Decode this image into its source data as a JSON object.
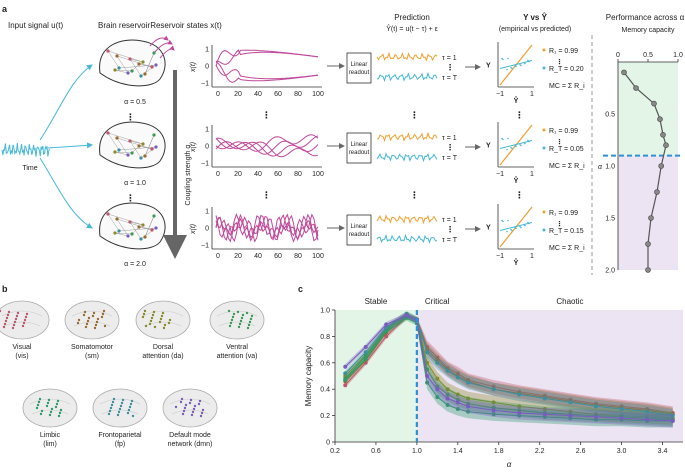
{
  "colors": {
    "magenta": "#c0479a",
    "orange": "#f0a030",
    "cyan": "#45b8d6",
    "blue_dash": "#2f8fd8",
    "stable_bg": "#e3f5e7",
    "chaotic_bg": "#ece4f3",
    "gray_line": "#555555"
  },
  "panel_a": {
    "label": "a",
    "input_title": "Input signal u(t)",
    "time_label": "Time",
    "brain_title": "Brain reservoir",
    "alphas": [
      "α = 0.5",
      "α = 1.0",
      "α = 2.0"
    ],
    "coupling_label": "Coupling strength α",
    "states_title": "Reservoir states x(t)",
    "state_ylabel": "x(t)",
    "state_yticks": [
      "1",
      "0",
      "−1"
    ],
    "state_xticks": [
      "0",
      "20",
      "40",
      "60",
      "80",
      "100"
    ],
    "readout_label": "Linear readout",
    "prediction_title": "Prediction",
    "prediction_formula": "Ŷ(t) = u(t − τ) + ε",
    "tau1": "τ = 1",
    "tauT": "τ = T",
    "vs_title": "Y vs Ŷ",
    "vs_subtitle": "(empirical vs predicted)",
    "scatter_ylabel": "Y",
    "scatter_xlabel": "Ŷ",
    "scatter_xticks": [
      "−1",
      "1"
    ],
    "rows": [
      {
        "r1": "R₁ = 0.99",
        "rT": "R_T = 0.20"
      },
      {
        "r1": "R₁ = 0.99",
        "rT": "R_T = 0.05"
      },
      {
        "r1": "R₁ = 0.99",
        "rT": "R_T = 0.15"
      }
    ],
    "mc_formula": "MC = Σ R_i",
    "perf_title": "Performance across α",
    "perf_xlabel": "Memory capacity",
    "perf_xticks": [
      "0",
      "0.5",
      "1.0"
    ],
    "perf_yticks": [
      "0.5",
      "1.0",
      "1.5",
      "2.0"
    ],
    "perf_ylabel": "α",
    "perf_alpha": [
      0.1,
      0.25,
      0.4,
      0.55,
      0.7,
      0.8,
      1.0,
      1.25,
      1.5,
      1.75,
      2.0
    ],
    "perf_mc": [
      0.1,
      0.3,
      0.6,
      0.7,
      0.75,
      0.8,
      0.72,
      0.65,
      0.55,
      0.5,
      0.5
    ]
  },
  "panel_b": {
    "label": "b",
    "networks": [
      {
        "name": "Visual",
        "abbr": "(vis)",
        "color": "#c0566e"
      },
      {
        "name": "Somatomotor",
        "abbr": "(sm)",
        "color": "#9b6a2e"
      },
      {
        "name": "Dorsal",
        "abbr": "attention (da)",
        "color": "#8b8a2a"
      },
      {
        "name": "Ventral",
        "abbr": "attention (va)",
        "color": "#3b9a56"
      },
      {
        "name": "Limbic",
        "abbr": "(lim)",
        "color": "#2f9a6e"
      },
      {
        "name": "Frontoparietal",
        "abbr": "(fp)",
        "color": "#3d8ea0"
      },
      {
        "name": "Default mode",
        "abbr": "network (dmn)",
        "color": "#7a5cc0"
      }
    ]
  },
  "panel_c": {
    "label": "c",
    "region_stable": "Stable",
    "region_critical": "Critical",
    "region_chaotic": "Chaotic"
  },
  "chart_data": {
    "type": "line",
    "xlabel": "α",
    "ylabel": "Memory capacity",
    "xlim": [
      0.2,
      3.6
    ],
    "ylim": [
      0,
      1.0
    ],
    "xticks": [
      "0.2",
      "0.6",
      "1.0",
      "1.4",
      "1.8",
      "2.2",
      "2.6",
      "3.0",
      "3.4"
    ],
    "yticks": [
      "0",
      "0.2",
      "0.4",
      "0.6",
      "0.8",
      "1.0"
    ],
    "critical_x": 1.0,
    "x": [
      0.3,
      0.5,
      0.7,
      0.9,
      1.0,
      1.1,
      1.2,
      1.3,
      1.4,
      1.5,
      1.75,
      2.0,
      2.25,
      2.5,
      2.75,
      3.0,
      3.25,
      3.5
    ],
    "series": [
      {
        "color": "#c0566e",
        "values": [
          0.43,
          0.6,
          0.8,
          0.95,
          0.93,
          0.72,
          0.64,
          0.56,
          0.52,
          0.47,
          0.42,
          0.38,
          0.35,
          0.32,
          0.29,
          0.27,
          0.25,
          0.22
        ]
      },
      {
        "color": "#9b6a2e",
        "values": [
          0.46,
          0.62,
          0.83,
          0.95,
          0.92,
          0.7,
          0.62,
          0.55,
          0.5,
          0.46,
          0.4,
          0.37,
          0.34,
          0.31,
          0.28,
          0.26,
          0.24,
          0.21
        ]
      },
      {
        "color": "#8b8a2a",
        "values": [
          0.5,
          0.66,
          0.86,
          0.97,
          0.93,
          0.6,
          0.48,
          0.4,
          0.36,
          0.33,
          0.3,
          0.27,
          0.25,
          0.23,
          0.21,
          0.2,
          0.19,
          0.18
        ]
      },
      {
        "color": "#3b9a56",
        "values": [
          0.48,
          0.65,
          0.85,
          0.96,
          0.92,
          0.55,
          0.42,
          0.36,
          0.32,
          0.29,
          0.26,
          0.24,
          0.22,
          0.21,
          0.2,
          0.19,
          0.18,
          0.17
        ]
      },
      {
        "color": "#2f9a6e",
        "values": [
          0.47,
          0.63,
          0.84,
          0.94,
          0.9,
          0.45,
          0.34,
          0.28,
          0.25,
          0.23,
          0.21,
          0.2,
          0.19,
          0.18,
          0.17,
          0.17,
          0.16,
          0.16
        ]
      },
      {
        "color": "#3d8ea0",
        "values": [
          0.52,
          0.68,
          0.87,
          0.97,
          0.93,
          0.68,
          0.6,
          0.54,
          0.49,
          0.45,
          0.4,
          0.36,
          0.33,
          0.3,
          0.27,
          0.25,
          0.23,
          0.2
        ]
      },
      {
        "color": "#7a5cc0",
        "values": [
          0.57,
          0.72,
          0.89,
          0.96,
          0.92,
          0.5,
          0.4,
          0.33,
          0.3,
          0.27,
          0.24,
          0.22,
          0.21,
          0.2,
          0.19,
          0.18,
          0.17,
          0.16
        ]
      }
    ]
  }
}
